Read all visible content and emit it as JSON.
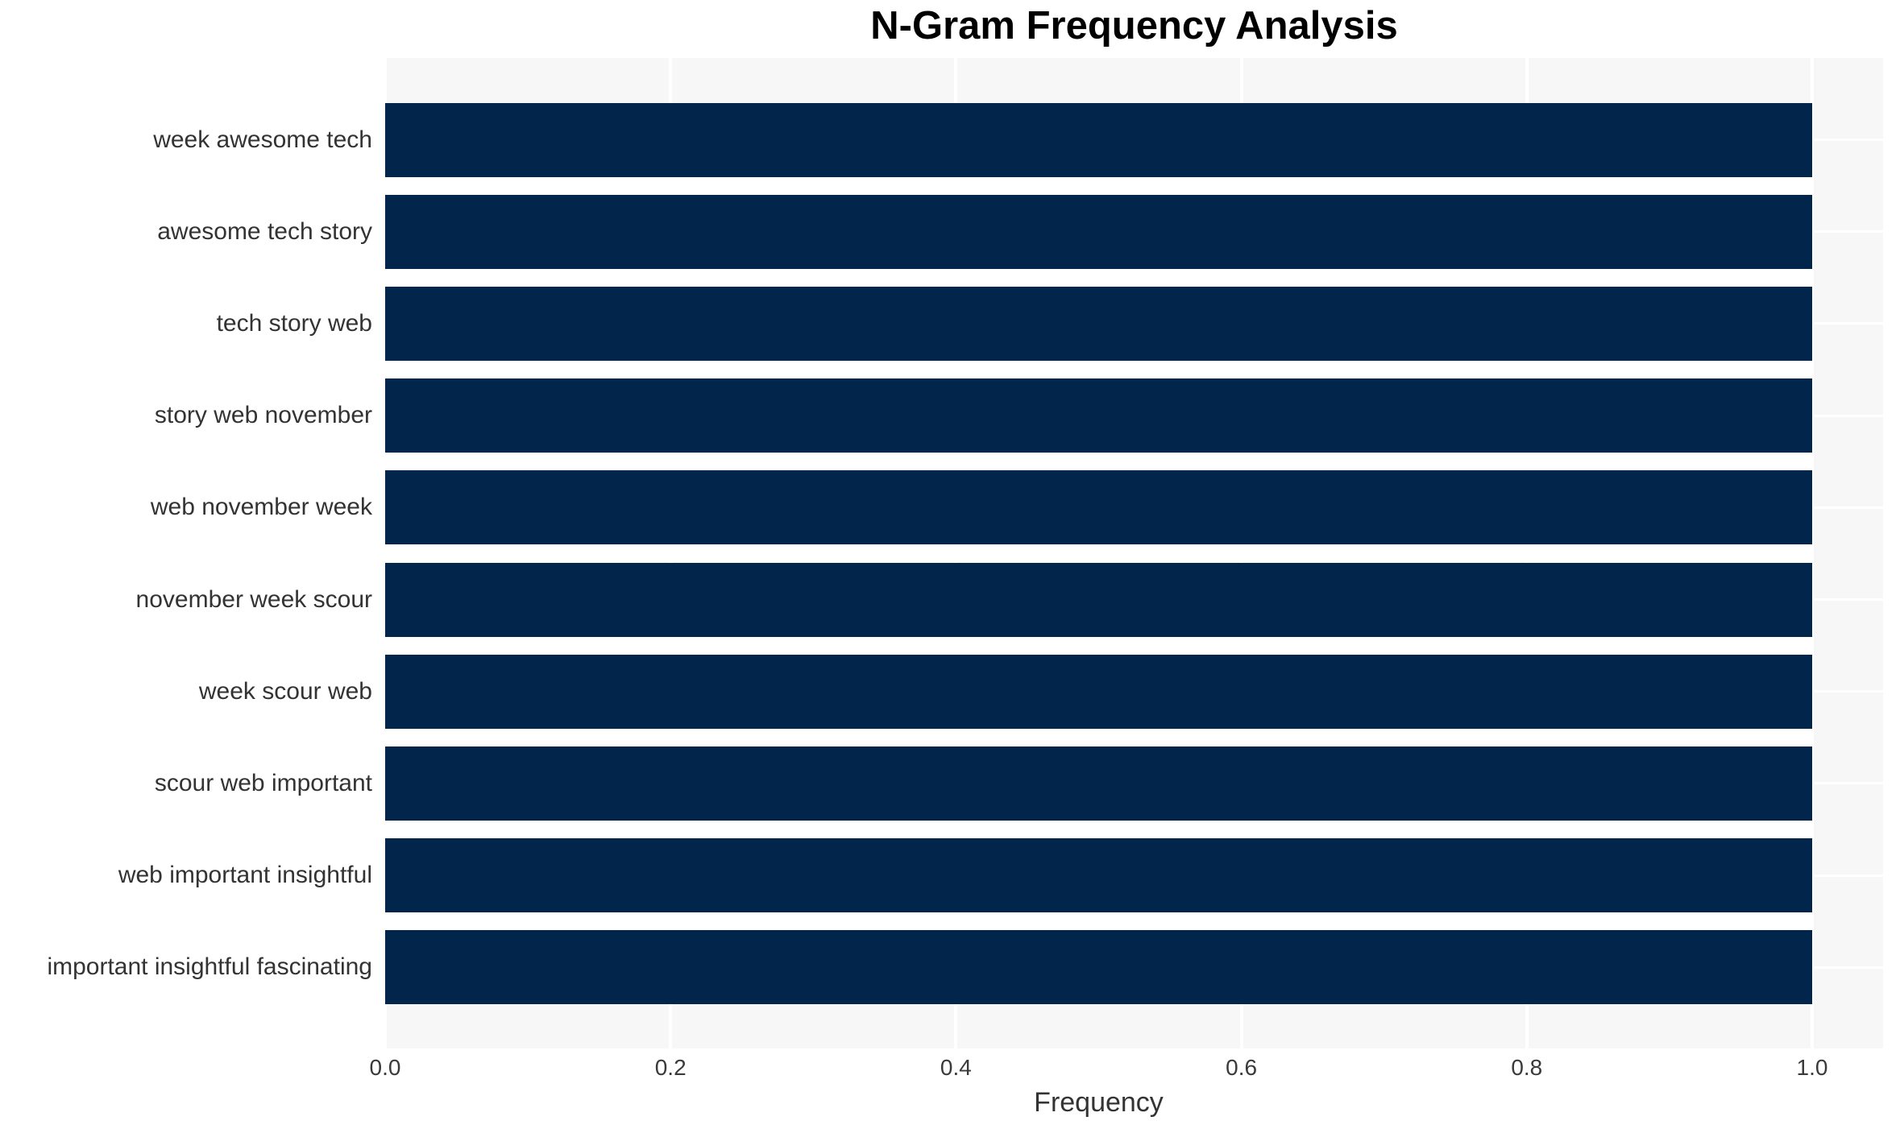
{
  "chart_data": {
    "type": "bar",
    "orientation": "horizontal",
    "title": "N-Gram Frequency Analysis",
    "xlabel": "Frequency",
    "ylabel": "",
    "categories": [
      "week awesome tech",
      "awesome tech story",
      "tech story web",
      "story web november",
      "web november week",
      "november week scour",
      "week scour web",
      "scour web important",
      "web important insightful",
      "important insightful fascinating"
    ],
    "values": [
      1.0,
      1.0,
      1.0,
      1.0,
      1.0,
      1.0,
      1.0,
      1.0,
      1.0,
      1.0
    ],
    "xticks": [
      0.0,
      0.2,
      0.4,
      0.6,
      0.8,
      1.0
    ],
    "xtick_labels": [
      "0.0",
      "0.2",
      "0.4",
      "0.6",
      "0.8",
      "1.0"
    ],
    "xlim": [
      0,
      1.05
    ],
    "grid": true,
    "legend_position": "none",
    "colors": {
      "bar": "#02254c",
      "plot_background": "#f7f7f7",
      "figure_background": "#ffffff",
      "gridline": "#ffffff",
      "tick_text": "#3a3a3a",
      "label_text": "#333333",
      "title_text": "#000000"
    }
  }
}
